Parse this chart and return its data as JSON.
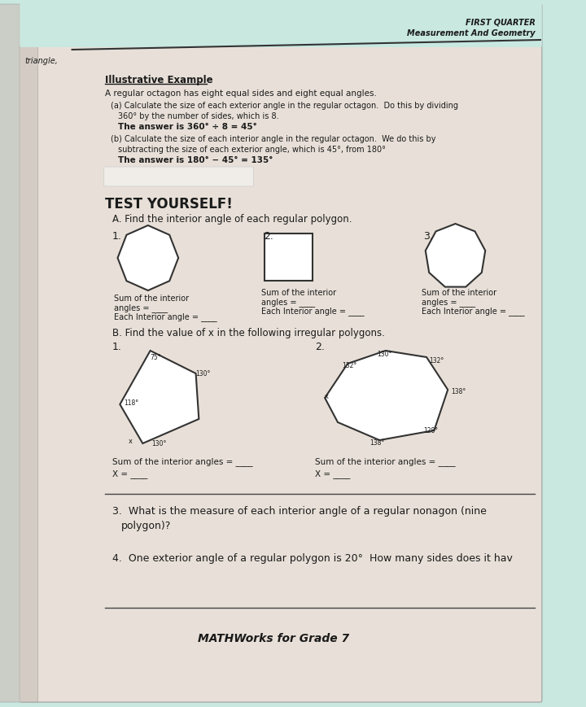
{
  "bg_color": "#c8e8e0",
  "page_bg": "#e8e0d8",
  "header_right1": "FIRST QUARTER",
  "header_right2": "Measurement And Geometry",
  "left_label": "triangle,",
  "section_title": "Illustrative Example",
  "intro_text": "A regular octagon has eight equal sides and eight equal angles.",
  "part_a_title": "(a) Calculate the size of each exterior angle in the regular octagon.  Do this by dividing",
  "part_a_body": "360° by the number of sides, which is 8.",
  "part_a_answer": "The answer is 360° ÷ 8 = 45°",
  "part_b_title": "(b) Calculate the size of each interior angle in the regular octagon.  We do this by",
  "part_b_body": "subtracting the size of each exterior angle, which is 45°, from 180°",
  "part_b_answer": "The answer is 180° − 45° = 135°",
  "test_title": "TEST YOURSELF!",
  "section_a_title": "A. Find the interior angle of each regular polygon.",
  "poly1_label1": "Sum of the interior",
  "poly1_label2": "angles =",
  "poly1_label3": "Each Interior angle =",
  "poly2_label1": "Sum of the interior",
  "poly2_label2": "angles =",
  "poly2_label3": "Each Interior angle =",
  "poly3_label1": "Sum of the interior",
  "poly3_label2": "angles =",
  "poly3_label3": "Each Interior angle =",
  "section_b_title": "B. Find the value of x in the following irregular polygons.",
  "irreg1_label1": "Sum of the interior angles =",
  "irreg2_label1": "Sum of the interior angles =",
  "q3_text1": "3.  What is the measure of each interior angle of a regular nonagon (nine",
  "q3_text2": "polygon)?",
  "q4_text": "4.  One exterior angle of a regular polygon is 20°  How many sides does it hav",
  "footer": "MATHWorks for Grade 7",
  "text_color": "#1a1a1a"
}
